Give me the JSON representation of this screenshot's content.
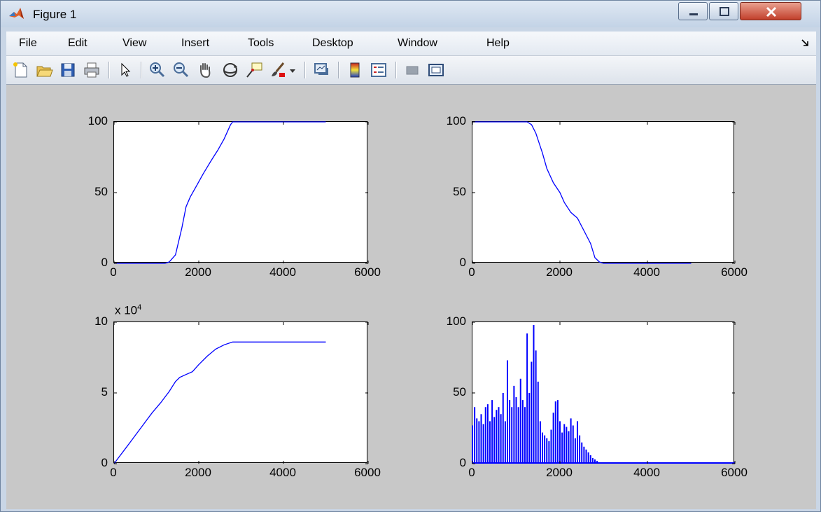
{
  "window": {
    "title": "Figure 1",
    "icon": "matlab-logo-icon"
  },
  "menu": {
    "items": [
      {
        "id": "file",
        "label": "File"
      },
      {
        "id": "edit",
        "label": "Edit"
      },
      {
        "id": "view",
        "label": "View"
      },
      {
        "id": "insert",
        "label": "Insert"
      },
      {
        "id": "tools",
        "label": "Tools"
      },
      {
        "id": "desktop",
        "label": "Desktop"
      },
      {
        "id": "window",
        "label": "Window"
      },
      {
        "id": "help",
        "label": "Help"
      }
    ]
  },
  "toolbar": {
    "buttons": [
      "new-figure-icon",
      "open-file-icon",
      "save-icon",
      "print-icon",
      "edit-plot-arrow-icon",
      "zoom-in-icon",
      "zoom-out-icon",
      "pan-hand-icon",
      "rotate-3d-icon",
      "data-cursor-icon",
      "brush-icon",
      "brush-dropdown-icon",
      "link-plot-icon",
      "insert-colorbar-icon",
      "insert-legend-icon",
      "hide-plot-tools-icon",
      "show-plot-tools-icon"
    ]
  },
  "chart_data": [
    {
      "type": "line",
      "xlim": [
        0,
        6000
      ],
      "ylim": [
        0,
        100
      ],
      "xticks": [
        "0",
        "2000",
        "4000",
        "6000"
      ],
      "yticks": [
        "0",
        "50",
        "100"
      ],
      "color": "#0000ff",
      "x": [
        0,
        1200,
        1300,
        1450,
        1600,
        1700,
        1800,
        1950,
        2100,
        2200,
        2300,
        2450,
        2600,
        2750,
        2800,
        3000,
        4000,
        5000
      ],
      "y": [
        0,
        0,
        1,
        6,
        25,
        40,
        47,
        55,
        63,
        68,
        73,
        80,
        88,
        98,
        100,
        100,
        100,
        100
      ]
    },
    {
      "type": "line",
      "xlim": [
        0,
        6000
      ],
      "ylim": [
        0,
        100
      ],
      "xticks": [
        "0",
        "2000",
        "4000",
        "6000"
      ],
      "yticks": [
        "0",
        "50",
        "100"
      ],
      "color": "#0000ff",
      "x": [
        0,
        1000,
        1250,
        1350,
        1450,
        1600,
        1700,
        1850,
        2000,
        2100,
        2250,
        2400,
        2550,
        2700,
        2800,
        2900,
        3000,
        4000,
        5000
      ],
      "y": [
        100,
        100,
        100,
        98,
        92,
        78,
        67,
        57,
        50,
        43,
        36,
        32,
        23,
        14,
        4,
        1,
        0,
        0,
        0
      ]
    },
    {
      "type": "line",
      "xlim": [
        0,
        6000
      ],
      "ylim": [
        0,
        10
      ],
      "yscale_label": "x 10^4",
      "xticks": [
        "0",
        "2000",
        "4000",
        "6000"
      ],
      "yticks": [
        "0",
        "5",
        "10"
      ],
      "color": "#0000ff",
      "x": [
        0,
        100,
        300,
        500,
        700,
        900,
        1100,
        1300,
        1450,
        1550,
        1700,
        1850,
        2000,
        2200,
        2400,
        2600,
        2800,
        3000,
        4000,
        5000
      ],
      "y": [
        0,
        0.4,
        1.2,
        2.0,
        2.8,
        3.6,
        4.3,
        5.1,
        5.8,
        6.1,
        6.3,
        6.5,
        7.0,
        7.6,
        8.1,
        8.4,
        8.6,
        8.6,
        8.6,
        8.6
      ]
    },
    {
      "type": "bar",
      "xlim": [
        0,
        6000
      ],
      "ylim": [
        0,
        100
      ],
      "xticks": [
        "0",
        "2000",
        "4000",
        "6000"
      ],
      "yticks": [
        "0",
        "50",
        "100"
      ],
      "color": "#0000ff",
      "x": [
        0,
        50,
        100,
        150,
        200,
        250,
        300,
        350,
        400,
        450,
        500,
        550,
        600,
        650,
        700,
        750,
        800,
        850,
        900,
        950,
        1000,
        1050,
        1100,
        1150,
        1200,
        1250,
        1300,
        1350,
        1400,
        1450,
        1500,
        1550,
        1600,
        1650,
        1700,
        1750,
        1800,
        1850,
        1900,
        1950,
        2000,
        2050,
        2100,
        2150,
        2200,
        2250,
        2300,
        2350,
        2400,
        2450,
        2500,
        2550,
        2600,
        2650,
        2700,
        2750,
        2800,
        2850,
        2900
      ],
      "y": [
        27,
        40,
        32,
        30,
        35,
        28,
        40,
        42,
        30,
        45,
        33,
        38,
        40,
        35,
        50,
        30,
        73,
        45,
        40,
        55,
        47,
        40,
        60,
        45,
        40,
        92,
        50,
        72,
        98,
        80,
        58,
        30,
        22,
        20,
        18,
        16,
        24,
        36,
        44,
        45,
        30,
        22,
        28,
        26,
        23,
        32,
        27,
        18,
        30,
        20,
        15,
        12,
        10,
        8,
        6,
        4,
        3,
        2,
        1
      ]
    }
  ]
}
